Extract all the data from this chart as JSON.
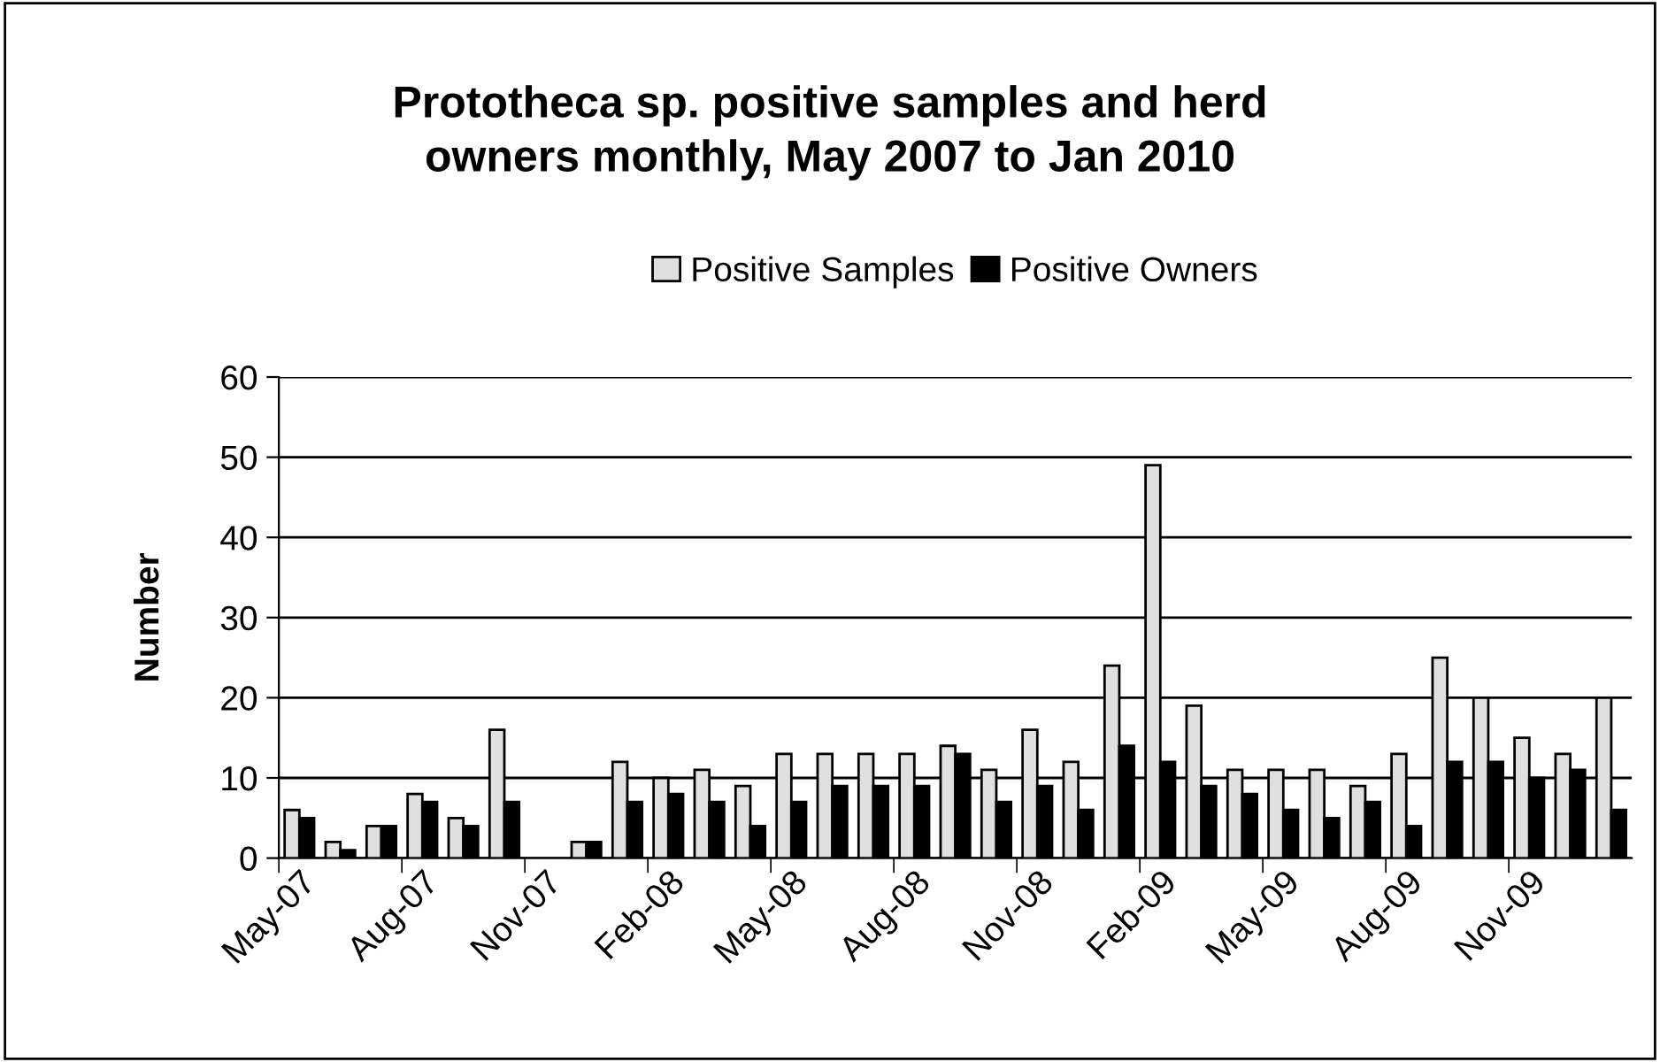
{
  "chart_data": {
    "type": "bar",
    "title": "Prototheca sp. positive samples and herd\nowners monthly, May 2007 to Jan 2010",
    "ylabel": "Number",
    "categories": [
      "May-07",
      null,
      null,
      "Aug-07",
      null,
      null,
      "Nov-07",
      null,
      null,
      "Feb-08",
      null,
      null,
      "May-08",
      null,
      null,
      "Aug-08",
      null,
      null,
      "Nov-08",
      null,
      null,
      "Feb-09",
      null,
      null,
      "May-09",
      null,
      null,
      "Aug-09",
      null,
      null,
      "Nov-09",
      null,
      null
    ],
    "series": [
      {
        "name": "Positive Samples",
        "color": "#e0e0e0",
        "values": [
          6,
          2,
          4,
          8,
          5,
          16,
          null,
          2,
          12,
          10,
          11,
          9,
          13,
          13,
          13,
          13,
          14,
          11,
          16,
          12,
          24,
          49,
          19,
          11,
          11,
          11,
          9,
          13,
          25,
          20,
          15,
          13,
          20
        ]
      },
      {
        "name": "Positive Owners",
        "color": "#000000",
        "values": [
          5,
          1,
          4,
          7,
          4,
          7,
          null,
          2,
          7,
          8,
          7,
          4,
          7,
          9,
          9,
          9,
          13,
          7,
          9,
          6,
          14,
          12,
          9,
          8,
          6,
          5,
          7,
          4,
          12,
          12,
          10,
          11,
          6
        ]
      }
    ],
    "ylim": [
      0,
      60
    ],
    "yticks": [
      0,
      10,
      20,
      30,
      40,
      50,
      60
    ],
    "grid": "y",
    "legend": "top"
  }
}
